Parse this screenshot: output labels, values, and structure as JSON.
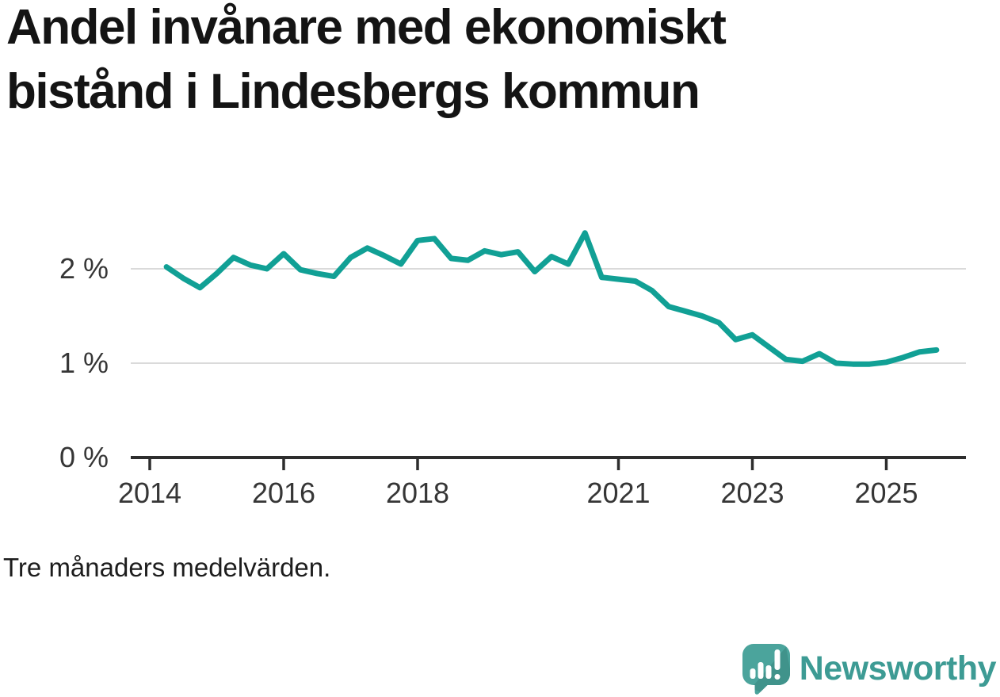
{
  "title": {
    "text": "Andel invånare med ekonomiskt bistånd i Lindesbergs kommun",
    "lines": [
      "Andel invånare med ekonomiskt",
      "bistånd i Lindesbergs kommun"
    ]
  },
  "footnote": "Tre månaders medelvärden.",
  "branding": {
    "name": "Newsworthy",
    "icon": "newsworthy-speech-bubble-bar-chart-icon",
    "text_color": "#3d9b94",
    "icon_color": "#4ba49c",
    "icon_shade_color": "#40938b",
    "icon_glyph_color": "#ffffff"
  },
  "chart_data": {
    "type": "line",
    "title": "Andel invånare med ekonomiskt bistånd i Lindesbergs kommun",
    "xlabel": "",
    "ylabel": "",
    "unit": "%",
    "note": "Tre månaders medelvärden.",
    "grid": "horizontal",
    "legend_position": "none",
    "ylim": [
      0,
      2.6
    ],
    "xlim": [
      2013.7,
      2026.2
    ],
    "x_ticks": [
      {
        "value": 2014,
        "label": "2014"
      },
      {
        "value": 2016,
        "label": "2016"
      },
      {
        "value": 2018,
        "label": "2018"
      },
      {
        "value": 2021,
        "label": "2021"
      },
      {
        "value": 2023,
        "label": "2023"
      },
      {
        "value": 2025,
        "label": "2025"
      }
    ],
    "y_ticks": [
      {
        "value": 0,
        "label": "0 %"
      },
      {
        "value": 1,
        "label": "1 %"
      },
      {
        "value": 2,
        "label": "2 %"
      }
    ],
    "style": {
      "line_color": "#11a095",
      "line_width": 7,
      "grid_color": "#dadada",
      "axis_color": "#2d2d2d",
      "tick_label_color": "#363636"
    },
    "series": [
      {
        "name": "Andel invånare med ekonomiskt bistånd",
        "color": "#11a095",
        "x": [
          2014.25,
          2014.5,
          2014.75,
          2015.0,
          2015.25,
          2015.5,
          2015.75,
          2016.0,
          2016.25,
          2016.5,
          2016.75,
          2017.0,
          2017.25,
          2017.5,
          2017.75,
          2018.0,
          2018.25,
          2018.5,
          2018.75,
          2019.0,
          2019.25,
          2019.5,
          2019.75,
          2020.0,
          2020.25,
          2020.5,
          2020.75,
          2021.0,
          2021.25,
          2021.5,
          2021.75,
          2022.0,
          2022.25,
          2022.5,
          2022.75,
          2023.0,
          2023.25,
          2023.5,
          2023.75,
          2024.0,
          2024.25,
          2024.5,
          2024.75,
          2025.0,
          2025.25,
          2025.5,
          2025.75
        ],
        "values": [
          2.02,
          1.9,
          1.8,
          1.95,
          2.12,
          2.04,
          2.0,
          2.16,
          1.99,
          1.95,
          1.92,
          2.12,
          2.22,
          2.14,
          2.05,
          2.3,
          2.32,
          2.11,
          2.09,
          2.19,
          2.15,
          2.18,
          1.97,
          2.13,
          2.05,
          2.38,
          1.91,
          1.89,
          1.87,
          1.77,
          1.6,
          1.55,
          1.5,
          1.43,
          1.25,
          1.3,
          1.17,
          1.04,
          1.02,
          1.1,
          1.0,
          0.99,
          0.99,
          1.01,
          1.06,
          1.12,
          1.14
        ]
      }
    ]
  }
}
